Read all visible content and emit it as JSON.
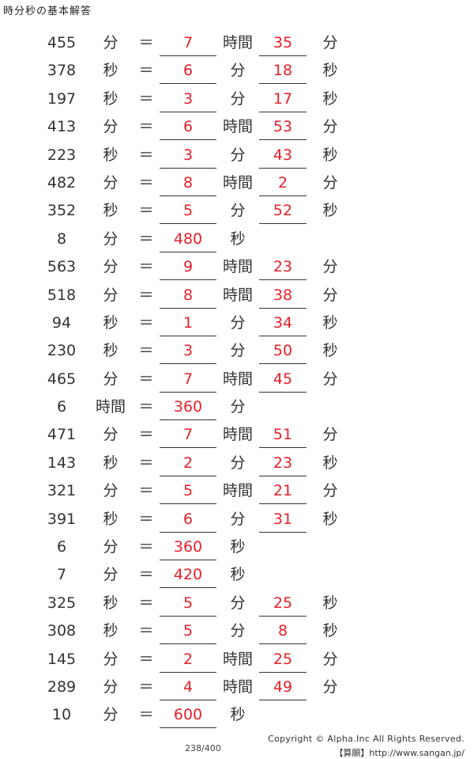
{
  "title": "時分秒の基本解答",
  "eq_symbol": "＝",
  "rows": [
    {
      "num": "455",
      "u1": "分",
      "ans1": "7",
      "u2": "時間",
      "ans2": "35",
      "u3": "分"
    },
    {
      "num": "378",
      "u1": "秒",
      "ans1": "6",
      "u2": "分",
      "ans2": "18",
      "u3": "秒"
    },
    {
      "num": "197",
      "u1": "秒",
      "ans1": "3",
      "u2": "分",
      "ans2": "17",
      "u3": "秒"
    },
    {
      "num": "413",
      "u1": "分",
      "ans1": "6",
      "u2": "時間",
      "ans2": "53",
      "u3": "分"
    },
    {
      "num": "223",
      "u1": "秒",
      "ans1": "3",
      "u2": "分",
      "ans2": "43",
      "u3": "秒"
    },
    {
      "num": "482",
      "u1": "分",
      "ans1": "8",
      "u2": "時間",
      "ans2": "2",
      "u3": "分"
    },
    {
      "num": "352",
      "u1": "秒",
      "ans1": "5",
      "u2": "分",
      "ans2": "52",
      "u3": "秒"
    },
    {
      "num": "8",
      "u1": "分",
      "ans1": "480",
      "u2": "秒",
      "ans2": "",
      "u3": ""
    },
    {
      "num": "563",
      "u1": "分",
      "ans1": "9",
      "u2": "時間",
      "ans2": "23",
      "u3": "分"
    },
    {
      "num": "518",
      "u1": "分",
      "ans1": "8",
      "u2": "時間",
      "ans2": "38",
      "u3": "分"
    },
    {
      "num": "94",
      "u1": "秒",
      "ans1": "1",
      "u2": "分",
      "ans2": "34",
      "u3": "秒"
    },
    {
      "num": "230",
      "u1": "秒",
      "ans1": "3",
      "u2": "分",
      "ans2": "50",
      "u3": "秒"
    },
    {
      "num": "465",
      "u1": "分",
      "ans1": "7",
      "u2": "時間",
      "ans2": "45",
      "u3": "分"
    },
    {
      "num": "6",
      "u1": "時間",
      "ans1": "360",
      "u2": "分",
      "ans2": "",
      "u3": ""
    },
    {
      "num": "471",
      "u1": "分",
      "ans1": "7",
      "u2": "時間",
      "ans2": "51",
      "u3": "分"
    },
    {
      "num": "143",
      "u1": "秒",
      "ans1": "2",
      "u2": "分",
      "ans2": "23",
      "u3": "秒"
    },
    {
      "num": "321",
      "u1": "分",
      "ans1": "5",
      "u2": "時間",
      "ans2": "21",
      "u3": "分"
    },
    {
      "num": "391",
      "u1": "秒",
      "ans1": "6",
      "u2": "分",
      "ans2": "31",
      "u3": "秒"
    },
    {
      "num": "6",
      "u1": "分",
      "ans1": "360",
      "u2": "秒",
      "ans2": "",
      "u3": ""
    },
    {
      "num": "7",
      "u1": "分",
      "ans1": "420",
      "u2": "秒",
      "ans2": "",
      "u3": ""
    },
    {
      "num": "325",
      "u1": "秒",
      "ans1": "5",
      "u2": "分",
      "ans2": "25",
      "u3": "秒"
    },
    {
      "num": "308",
      "u1": "秒",
      "ans1": "5",
      "u2": "分",
      "ans2": "8",
      "u3": "秒"
    },
    {
      "num": "145",
      "u1": "分",
      "ans1": "2",
      "u2": "時間",
      "ans2": "25",
      "u3": "分"
    },
    {
      "num": "289",
      "u1": "分",
      "ans1": "4",
      "u2": "時間",
      "ans2": "49",
      "u3": "分"
    },
    {
      "num": "10",
      "u1": "分",
      "ans1": "600",
      "u2": "秒",
      "ans2": "",
      "u3": ""
    }
  ],
  "footer": {
    "page": "238/400",
    "copyright": "Copyright © Alpha.Inc All Rights Reserved.",
    "site": "【算願】http://www.sangan.jp/"
  },
  "colors": {
    "answer": "#e8202a",
    "text": "#333333"
  }
}
